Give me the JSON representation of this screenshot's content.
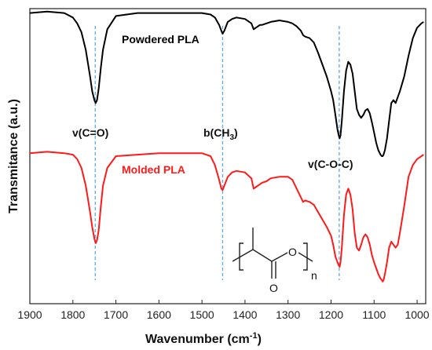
{
  "chart_data": {
    "type": "line",
    "title": "",
    "xlabel": "Wavenumber (cm",
    "xlabel_sup": "-1",
    "xlabel_end": ")",
    "ylabel": "Transmitance (a.u.)",
    "xlim": [
      1900,
      980
    ],
    "x_reversed": true,
    "grid": false,
    "xticks": [
      1900,
      1800,
      1700,
      1600,
      1500,
      1400,
      1300,
      1200,
      1100,
      1000
    ],
    "xtick_labels": [
      "1900",
      "1800",
      "1700",
      "1600",
      "1500",
      "1400",
      "1300",
      "1200",
      "1100",
      "1000"
    ],
    "series": [
      {
        "name": "Powdered PLA",
        "color": "#000000",
        "x": [
          1900,
          1860,
          1820,
          1800,
          1790,
          1780,
          1770,
          1760,
          1755,
          1750,
          1747,
          1744,
          1740,
          1735,
          1730,
          1720,
          1700,
          1650,
          1600,
          1550,
          1500,
          1480,
          1470,
          1460,
          1455,
          1452,
          1448,
          1440,
          1430,
          1420,
          1400,
          1385,
          1380,
          1375,
          1365,
          1360,
          1350,
          1340,
          1320,
          1300,
          1290,
          1280,
          1270,
          1265,
          1260,
          1250,
          1240,
          1230,
          1220,
          1210,
          1200,
          1195,
          1190,
          1185,
          1182,
          1180,
          1178,
          1175,
          1170,
          1165,
          1160,
          1155,
          1150,
          1145,
          1140,
          1135,
          1130,
          1125,
          1120,
          1115,
          1110,
          1105,
          1100,
          1095,
          1090,
          1085,
          1082,
          1080,
          1078,
          1075,
          1070,
          1065,
          1060,
          1055,
          1050,
          1045,
          1040,
          1030,
          1020,
          1010,
          1000,
          990,
          985
        ],
        "y": [
          0.985,
          0.99,
          0.985,
          0.97,
          0.95,
          0.92,
          0.86,
          0.77,
          0.72,
          0.69,
          0.68,
          0.69,
          0.73,
          0.8,
          0.86,
          0.93,
          0.975,
          0.985,
          0.985,
          0.985,
          0.985,
          0.98,
          0.97,
          0.945,
          0.925,
          0.915,
          0.925,
          0.955,
          0.965,
          0.97,
          0.965,
          0.95,
          0.93,
          0.935,
          0.945,
          0.945,
          0.95,
          0.955,
          0.96,
          0.955,
          0.95,
          0.94,
          0.925,
          0.91,
          0.905,
          0.9,
          0.885,
          0.85,
          0.81,
          0.77,
          0.72,
          0.69,
          0.64,
          0.59,
          0.57,
          0.56,
          0.57,
          0.62,
          0.72,
          0.79,
          0.82,
          0.81,
          0.78,
          0.72,
          0.66,
          0.64,
          0.63,
          0.64,
          0.655,
          0.66,
          0.645,
          0.615,
          0.58,
          0.545,
          0.52,
          0.505,
          0.5,
          0.5,
          0.505,
          0.52,
          0.56,
          0.62,
          0.68,
          0.69,
          0.68,
          0.7,
          0.72,
          0.77,
          0.84,
          0.9,
          0.935,
          0.95,
          0.955
        ]
      },
      {
        "name": "Molded PLA",
        "color": "#ff1a1a",
        "x": [
          1900,
          1860,
          1820,
          1800,
          1790,
          1780,
          1770,
          1760,
          1755,
          1750,
          1747,
          1744,
          1740,
          1735,
          1730,
          1720,
          1700,
          1650,
          1600,
          1550,
          1500,
          1480,
          1470,
          1460,
          1455,
          1452,
          1448,
          1440,
          1430,
          1420,
          1400,
          1385,
          1380,
          1375,
          1365,
          1360,
          1350,
          1340,
          1320,
          1300,
          1290,
          1280,
          1270,
          1265,
          1260,
          1250,
          1240,
          1230,
          1220,
          1210,
          1200,
          1195,
          1190,
          1185,
          1182,
          1180,
          1178,
          1175,
          1170,
          1165,
          1160,
          1155,
          1150,
          1145,
          1140,
          1135,
          1130,
          1125,
          1120,
          1115,
          1110,
          1105,
          1100,
          1095,
          1090,
          1085,
          1082,
          1080,
          1078,
          1075,
          1070,
          1065,
          1060,
          1055,
          1050,
          1045,
          1040,
          1030,
          1020,
          1010,
          1000,
          990,
          985
        ],
        "y": [
          0.51,
          0.515,
          0.51,
          0.505,
          0.49,
          0.46,
          0.4,
          0.31,
          0.26,
          0.22,
          0.205,
          0.215,
          0.25,
          0.33,
          0.4,
          0.46,
          0.5,
          0.505,
          0.51,
          0.51,
          0.51,
          0.5,
          0.47,
          0.42,
          0.39,
          0.385,
          0.4,
          0.43,
          0.445,
          0.45,
          0.445,
          0.425,
          0.39,
          0.395,
          0.405,
          0.41,
          0.415,
          0.425,
          0.43,
          0.43,
          0.42,
          0.39,
          0.36,
          0.345,
          0.35,
          0.345,
          0.335,
          0.31,
          0.285,
          0.26,
          0.23,
          0.2,
          0.16,
          0.14,
          0.13,
          0.125,
          0.14,
          0.19,
          0.3,
          0.37,
          0.39,
          0.37,
          0.32,
          0.24,
          0.19,
          0.18,
          0.2,
          0.225,
          0.235,
          0.225,
          0.2,
          0.165,
          0.14,
          0.12,
          0.1,
          0.085,
          0.08,
          0.075,
          0.08,
          0.1,
          0.14,
          0.19,
          0.21,
          0.2,
          0.19,
          0.2,
          0.24,
          0.33,
          0.43,
          0.47,
          0.49,
          0.5,
          0.505
        ]
      }
    ],
    "reference_lines": [
      {
        "x": 1748,
        "color": "#5aa9e6"
      },
      {
        "x": 1452,
        "color": "#5aa9e6"
      },
      {
        "x": 1181,
        "color": "#5aa9e6"
      }
    ],
    "annotations": {
      "co": "v(C=O)",
      "ch3_prefix": "b(CH",
      "ch3_sub": "3",
      "ch3_suffix": ")",
      "coc": "v(C-O-C)",
      "struct_o": "O",
      "struct_o2": "O",
      "struct_n": "n"
    },
    "legend_placement": "inline labels next to each curve"
  }
}
